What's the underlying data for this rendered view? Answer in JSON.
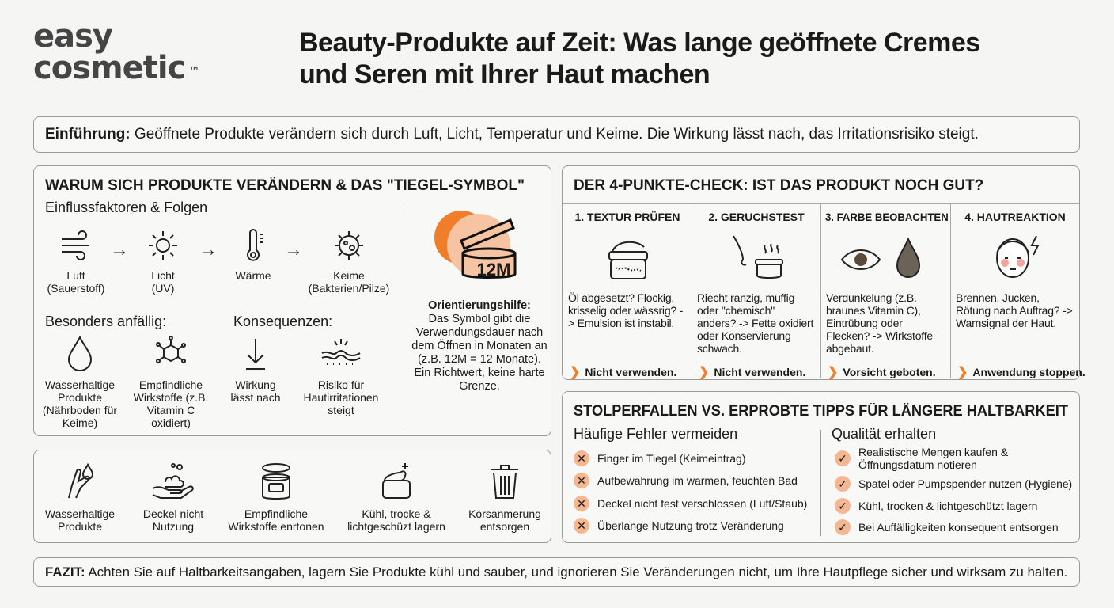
{
  "logo": {
    "line1": "easy",
    "line2": "cosmetic",
    "tm": "™"
  },
  "title": {
    "line1": "Beauty-Produkte auf Zeit: Was lange geöffnete Cremes",
    "line2": "und Seren mit Ihrer Haut machen"
  },
  "intro": {
    "label": "Einführung:",
    "text": " Geöffnete Produkte verändern sich durch Luft, Licht, Temperatur und Keime. Die Wirkung lässt nach, das Irritationsrisiko steigt."
  },
  "why": {
    "heading": "WARUM SICH PRODUKTE VERÄNDERN & DAS \"TIEGEL-SYMBOL\"",
    "subheading": "Einflussfaktoren & Folgen",
    "factors": [
      {
        "icon": "wind-icon",
        "l1": "Luft",
        "l2": "(Sauerstoff)"
      },
      {
        "icon": "sun-icon",
        "l1": "Licht",
        "l2": "(UV)"
      },
      {
        "icon": "thermometer-icon",
        "l1": "Wärme",
        "l2": ""
      },
      {
        "icon": "germ-icon",
        "l1": "Keime",
        "l2": "(Bakterien/Pilze)"
      }
    ],
    "susceptible_label": "Besonders anfällig:",
    "consequences_label": "Konsequenzen:",
    "susceptible": [
      {
        "icon": "drop-icon",
        "text": "Wasserhaltige Produkte (Nährboden für Keime)"
      },
      {
        "icon": "molecule-icon",
        "text": "Empfindliche Wirkstoffe (z.B. Vitamin C oxidiert)"
      }
    ],
    "consequences": [
      {
        "icon": "arrow-down-icon",
        "text": "Wirkung lässt nach"
      },
      {
        "icon": "irritated-skin-icon",
        "text": "Risiko für Hautirritationen steigt"
      }
    ],
    "symbol": {
      "label": "12M",
      "title": "Orientierungshilfe:",
      "text": "Das Symbol gibt die Verwendungsdauer nach dem Öffnen in Monaten an (z.B. 12M = 12 Monate). Ein Richtwert, keine harte Grenze."
    }
  },
  "icons_row": [
    {
      "icon": "finger-drop-icon",
      "text": "Wasserhaltige Produkte"
    },
    {
      "icon": "hand-foam-icon",
      "text": "Deckel nicht Nutzung"
    },
    {
      "icon": "open-jar-icon",
      "text": "Empfindliche Wirkstoffe enrtonen"
    },
    {
      "icon": "cool-jar-icon",
      "text": "Kühl, trocke & lichtgeschüzt lagern"
    },
    {
      "icon": "trash-icon",
      "text": "Korsanmerung entsorgen"
    }
  ],
  "check": {
    "heading": "DER 4-PUNKTE-CHECK: IST DAS PRODUKT NOCH GUT?",
    "columns": [
      {
        "title": "1. TEXTUR PRÜFEN",
        "icon": "cream-jar-icon",
        "text": "Öl abgesetzt? Flockig, krisselig oder wässrig? -> Emulsion ist instabil.",
        "verdict": "Nicht verwenden."
      },
      {
        "title": "2. GERUCHSTEST",
        "icon": "nose-icon",
        "text": "Riecht ranzig, muffig oder \"chemisch\" anders? -> Fette oxidiert oder Konservierung schwach.",
        "verdict": "Nicht verwenden."
      },
      {
        "title": "3. FARBE BEOBACHTEN",
        "icon": "eye-drop-icon",
        "text": "Verdunkelung (z.B. braunes Vitamin C), Eintrübung oder Flecken? -> Wirkstoffe abgebaut.",
        "verdict": "Vorsicht geboten."
      },
      {
        "title": "4. HAUTREAKTION",
        "icon": "face-reaction-icon",
        "text": "Brennen, Jucken, Rötung nach Auftrag? -> Warnsignal der Haut.",
        "verdict": "Anwendung stoppen."
      }
    ]
  },
  "tips": {
    "heading": "STOLPERFALLEN VS. ERPROBTE TIPPS FÜR LÄNGERE HALTBARKEIT",
    "mistakes_title": "Häufige Fehler vermeiden",
    "mistakes": [
      "Finger im Tiegel (Keimeintrag)",
      "Aufbewahrung im warmen, feuchten Bad",
      "Deckel nicht fest verschlossen (Luft/Staub)",
      "Überlange Nutzung trotz Veränderung"
    ],
    "good_title": "Qualität erhalten",
    "good": [
      "Realistische Mengen kaufen & Öffnungsdatum notieren",
      "Spatel oder Pumpspender nutzen (Hygiene)",
      "Kühl, trocken & lichtgeschützt lagern",
      "Bei Auffälligkeiten konsequent entsorgen"
    ],
    "x_glyph": "✕",
    "check_glyph": "✓"
  },
  "fazit": {
    "label": "FAZIT:",
    "text": " Achten Sie auf Haltbarkeitsangaben, lagern Sie Produkte kühl und sauber, und ignorieren Sie Veränderungen nicht, um Ihre Hautpflege sicher und wirksam zu halten."
  },
  "colors": {
    "accent": "#ef7d2a",
    "accent_light": "#f4b792",
    "border": "#9a9a9a"
  }
}
